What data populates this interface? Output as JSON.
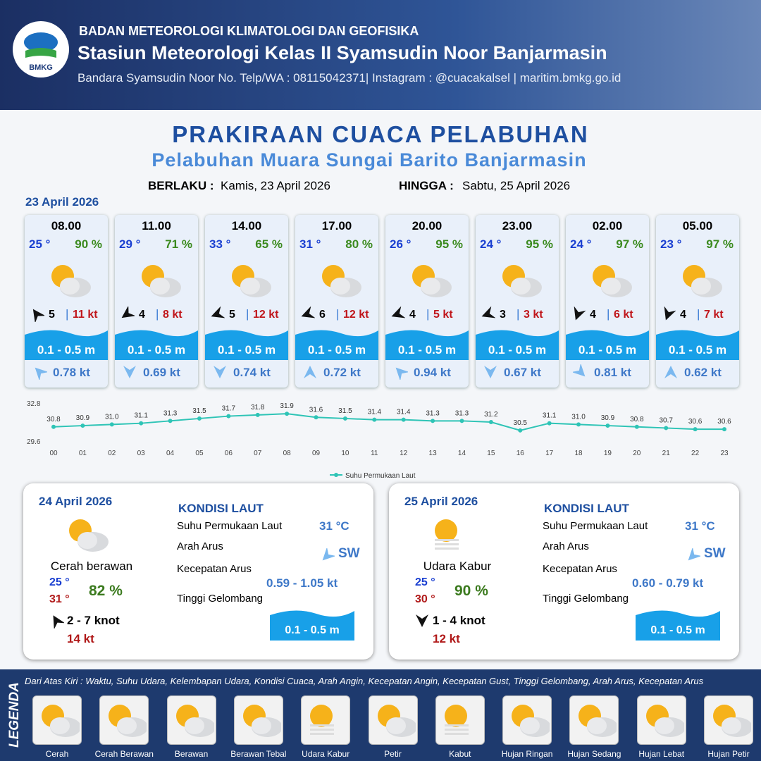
{
  "header": {
    "org": "BADAN METEOROLOGI KLIMATOLOGI DAN GEOFISIKA",
    "station": "Stasiun Meteorologi Kelas II Syamsudin Noor Banjarmasin",
    "contact": "Bandara Syamsudin Noor No. Telp/WA : 08115042371| Instagram : @cuacakalsel | maritim.bmkg.go.id",
    "logo": "BMKG"
  },
  "title": "PRAKIRAAN CUACA PELABUHAN",
  "subtitle": "Pelabuhan Muara Sungai Barito Banjarmasin",
  "validity": {
    "from_label": "BERLAKU :",
    "from": "Kamis, 23 April 2026",
    "to_label": "HINGGA :",
    "to": "Sabtu, 25 April 2026"
  },
  "day1_date": "23 April 2026",
  "cards": [
    {
      "time": "08.00",
      "temp": "25 °",
      "humidity": "90 %",
      "wind": "5",
      "gust": "11 kt",
      "wave": "0.1 - 0.5 m",
      "current": "0.78 kt"
    },
    {
      "time": "11.00",
      "temp": "29 °",
      "humidity": "71 %",
      "wind": "4",
      "gust": "8 kt",
      "wave": "0.1 - 0.5 m",
      "current": "0.69 kt"
    },
    {
      "time": "14.00",
      "temp": "33 °",
      "humidity": "65 %",
      "wind": "5",
      "gust": "12 kt",
      "wave": "0.1 - 0.5 m",
      "current": "0.74 kt"
    },
    {
      "time": "17.00",
      "temp": "31 °",
      "humidity": "80 %",
      "wind": "6",
      "gust": "12 kt",
      "wave": "0.1 - 0.5 m",
      "current": "0.72 kt"
    },
    {
      "time": "20.00",
      "temp": "26 °",
      "humidity": "95 %",
      "wind": "4",
      "gust": "5 kt",
      "wave": "0.1 - 0.5 m",
      "current": "0.94 kt"
    },
    {
      "time": "23.00",
      "temp": "24 °",
      "humidity": "95 %",
      "wind": "3",
      "gust": "3 kt",
      "wave": "0.1 - 0.5 m",
      "current": "0.67 kt"
    },
    {
      "time": "02.00",
      "temp": "24 °",
      "humidity": "97 %",
      "wind": "4",
      "gust": "6 kt",
      "wave": "0.1 - 0.5 m",
      "current": "0.81 kt"
    },
    {
      "time": "05.00",
      "temp": "23 °",
      "humidity": "97 %",
      "wind": "4",
      "gust": "7 kt",
      "wave": "0.1 - 0.5 m",
      "current": "0.62 kt"
    }
  ],
  "chart_data": {
    "type": "line",
    "categories": [
      "00",
      "01",
      "02",
      "03",
      "04",
      "05",
      "06",
      "07",
      "08",
      "09",
      "10",
      "11",
      "12",
      "13",
      "14",
      "15",
      "16",
      "17",
      "18",
      "19",
      "20",
      "21",
      "22",
      "23"
    ],
    "series": [
      {
        "name": "Suhu Permukaan Laut",
        "color": "#2ec4b6",
        "values": [
          30.8,
          30.9,
          31.0,
          31.1,
          31.3,
          31.5,
          31.7,
          31.8,
          31.9,
          31.6,
          31.5,
          31.4,
          31.4,
          31.3,
          31.3,
          31.2,
          30.5,
          31.1,
          31.0,
          30.9,
          30.8,
          30.7,
          30.6,
          30.6
        ],
        "value_labels": [
          "30.8",
          "30.9",
          "31.0",
          "31.1",
          "31.3",
          "31.5",
          "31.7",
          "31.8",
          "31.9",
          "31.6",
          "31.5",
          "31.4",
          "31.4",
          "31.3",
          "31.3",
          "31.2",
          "30.5",
          "31.1",
          "31.0",
          "30.9",
          "30.8",
          "30.7",
          "30.6",
          "30.6"
        ]
      }
    ],
    "ylim": [
      29.6,
      32.8
    ],
    "yticks": [
      29.6,
      32.8
    ],
    "legend": "bottom"
  },
  "days": [
    {
      "date": "24 April 2026",
      "heading": "KONDISI LAUT",
      "condition": "Cerah berawan",
      "temp_min": "25 °",
      "temp_max": "31 °",
      "humidity": "82 %",
      "wind": "2  - 7 knot",
      "gust": "14 kt",
      "labels": [
        "Suhu Permukaan Laut",
        "Arah Arus",
        "Kecepatan Arus",
        "Tinggi Gelombang"
      ],
      "sst": "31 °C",
      "current_dir": "SW",
      "current_speed": "0.59 - 1.05 kt",
      "wave": "0.1 - 0.5 m"
    },
    {
      "date": "25 April 2026",
      "heading": "KONDISI LAUT",
      "condition": "Udara Kabur",
      "temp_min": "25 °",
      "temp_max": "30 °",
      "humidity": "90 %",
      "wind": "1  - 4 knot",
      "gust": "12 kt",
      "labels": [
        "Suhu Permukaan Laut",
        "Arah Arus",
        "Kecepatan Arus",
        "Tinggi Gelombang"
      ],
      "sst": "31 °C",
      "current_dir": "SW",
      "current_speed": "0.60 - 0.79 kt",
      "wave": "0.1 - 0.5 m"
    }
  ],
  "legend": {
    "title": "LEGENDA",
    "description": "Dari Atas Kiri : Waktu, Suhu Udara, Kelembapan Udara, Kondisi Cuaca, Arah Angin, Kecepatan Angin, Kecepatan Gust, Tinggi Gelombang, Arah Arus, Kecepatan Arus",
    "items": [
      "Cerah",
      "Cerah Berawan",
      "Berawan",
      "Berawan Tebal",
      "Udara Kabur",
      "Petir",
      "Kabut",
      "Hujan Ringan",
      "Hujan Sedang",
      "Hujan Lebat",
      "Hujan Petir"
    ]
  }
}
